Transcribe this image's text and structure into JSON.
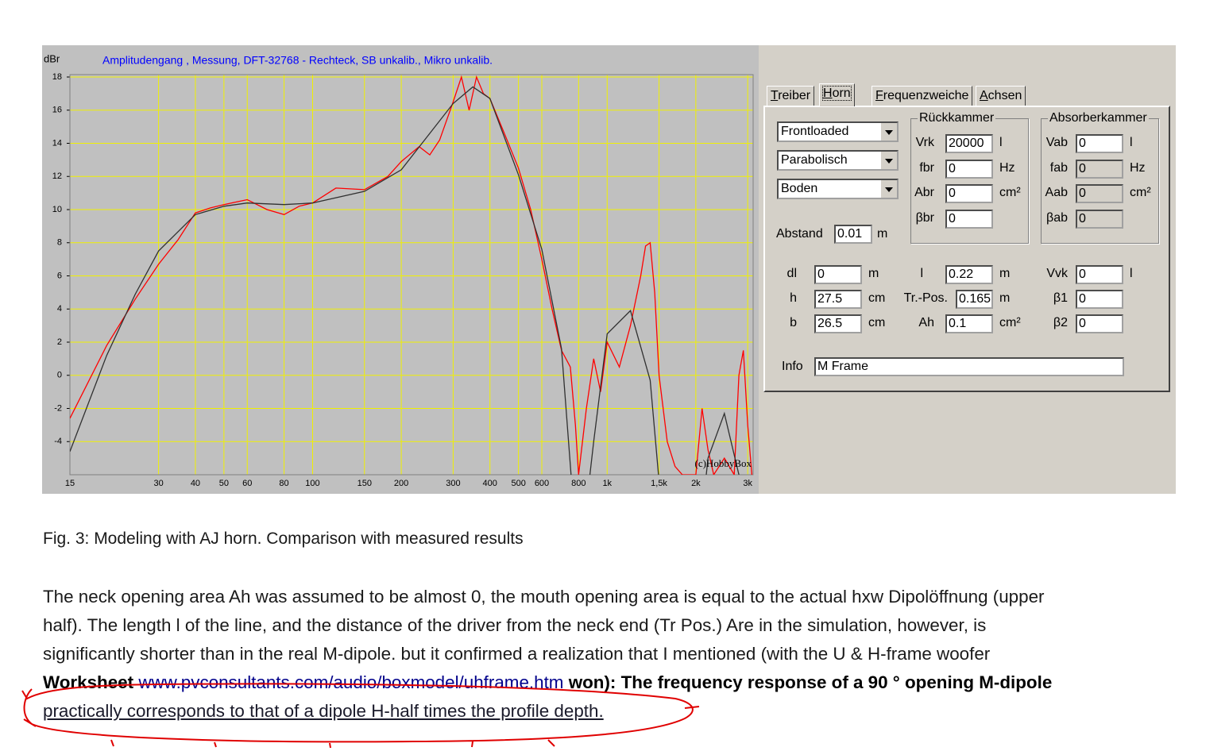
{
  "chart_data": {
    "type": "line",
    "title": "Amplitudengang , Messung, DFT-32768 - Rechteck, SB unkalib., Mikro unkalib.",
    "ylabel": "dBr",
    "annotation": "(c)HobbyBox",
    "log_x": true,
    "grid": true,
    "xlim": [
      15,
      3130
    ],
    "ylim": [
      -6,
      18
    ],
    "xticks": [
      15,
      30,
      40,
      50,
      60,
      80,
      100,
      150,
      200,
      300,
      400,
      500,
      600,
      800,
      {
        "value": 1000,
        "label": "1k"
      },
      {
        "value": 1500,
        "label": "1,5k"
      },
      {
        "value": 2000,
        "label": "2k"
      },
      {
        "value": 3000,
        "label": "3k"
      }
    ],
    "yticks": [
      -4,
      -2,
      0,
      2,
      4,
      6,
      8,
      10,
      12,
      14,
      16,
      18
    ],
    "series": [
      {
        "color": "#ff0000",
        "x": [
          15,
          20,
          25,
          30,
          35,
          40,
          45,
          50,
          60,
          70,
          80,
          90,
          100,
          120,
          150,
          180,
          200,
          230,
          250,
          270,
          300,
          320,
          340,
          360,
          380,
          400,
          450,
          500,
          550,
          600,
          650,
          700,
          750,
          780,
          800,
          850,
          900,
          950,
          1000,
          1100,
          1200,
          1300,
          1350,
          1400,
          1450,
          1500,
          1600,
          1700,
          1800,
          2000,
          2100,
          2200,
          2300,
          2500,
          2700,
          2800,
          2900,
          3000,
          3100
        ],
        "values": [
          -2.6,
          1.8,
          4.6,
          6.7,
          8.2,
          9.8,
          10.1,
          10.3,
          10.6,
          10.0,
          9.7,
          10.2,
          10.4,
          11.3,
          11.2,
          12.0,
          12.9,
          13.8,
          13.3,
          14.2,
          16.5,
          18,
          16,
          18,
          17,
          16.7,
          14.5,
          12.5,
          10,
          7,
          4,
          1.5,
          0.5,
          -3,
          -6,
          -2,
          1,
          -1,
          2,
          0.5,
          3,
          6,
          7.8,
          8,
          5,
          0,
          -4,
          -5.5,
          -6,
          -6,
          -2,
          -4.5,
          -6,
          -5,
          -6,
          0,
          1.5,
          -3,
          -6
        ]
      },
      {
        "color": "#303030",
        "x": [
          15,
          20,
          25,
          30,
          40,
          50,
          60,
          80,
          100,
          150,
          200,
          300,
          350,
          400,
          500,
          600,
          700,
          800,
          900,
          1000,
          1200,
          1400,
          1600,
          2000,
          2200,
          2500,
          2800,
          3000
        ],
        "values": [
          -4.6,
          1.2,
          4.9,
          7.5,
          9.7,
          10.2,
          10.4,
          10.3,
          10.4,
          11.1,
          12.4,
          16.4,
          17.4,
          16.7,
          12.1,
          7.6,
          1.6,
          -12,
          -4,
          2.5,
          3.9,
          -0.3,
          -12,
          -12,
          -5,
          -2.3,
          -6,
          -12
        ]
      }
    ]
  },
  "panel": {
    "tabs": [
      "Treiber",
      "Horn",
      "Frequenzweiche",
      "Achsen"
    ],
    "selects": [
      "Frontloaded",
      "Parabolisch",
      "Boden"
    ],
    "groups": [
      "Rückkammer",
      "Absorberkammer"
    ],
    "abstand": {
      "label": "Abstand",
      "value": "0.01",
      "unit": "m"
    },
    "fields": [
      {
        "label": "Vrk",
        "value": "20000",
        "unit": "l"
      },
      {
        "label": "fbr",
        "value": "0",
        "unit": "Hz"
      },
      {
        "label": "Abr",
        "value": "0",
        "unit": "cm²"
      },
      {
        "label": "βbr",
        "value": "0"
      },
      {
        "label": "Vab",
        "value": "0",
        "unit": "l"
      },
      {
        "label": "fab",
        "value": "0",
        "unit": "Hz"
      },
      {
        "label": "Aab",
        "value": "0",
        "unit": "cm²"
      },
      {
        "label": "βab",
        "value": "0"
      },
      {
        "label": "dl",
        "value": "0",
        "unit": "m"
      },
      {
        "label": "h",
        "value": "27.5",
        "unit": "cm"
      },
      {
        "label": "b",
        "value": "26.5",
        "unit": "cm"
      },
      {
        "label": "l",
        "value": "0.22",
        "unit": "m"
      },
      {
        "label": "Tr.-Pos.",
        "value": "0.165",
        "unit": "m"
      },
      {
        "label": "Ah",
        "value": "0.1",
        "unit": "cm²"
      },
      {
        "label": "Vvk",
        "value": "0",
        "unit": "l"
      },
      {
        "label": "β1",
        "value": "0"
      },
      {
        "label": "β2",
        "value": "0"
      }
    ],
    "info": {
      "label": "Info",
      "value": "M Frame"
    }
  },
  "caption": "Fig. 3: Modeling with AJ horn. Comparison with measured results",
  "paragraph": [
    [
      "The neck opening area Ah was assumed to be almost 0, the mouth opening area is equal to the actual hxw Dipolöffnung (upper"
    ],
    [
      "half). The length l of the line, and the distance of the driver from the neck end (Tr Pos.) Are in the simulation, however, is"
    ],
    [
      "significantly shorter than in the real M-dipole. but it confirmed a realization that I mentioned (with the U & H-frame woofer"
    ],
    [
      "Worksheet",
      "www.pvconsultants.com/audio/boxmodel/uhframe.htm",
      "won): The frequency response of a 90 ° opening M-dipole"
    ],
    [
      "practically corresponds to that of a dipole H-half times the profile depth."
    ]
  ]
}
